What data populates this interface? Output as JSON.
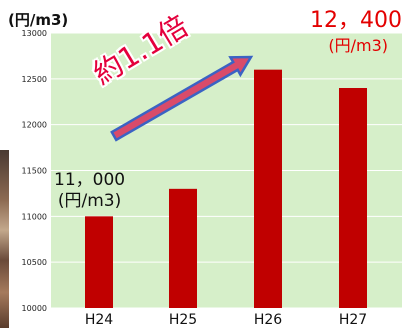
{
  "unit_label": "(円/m3)",
  "annotations": {
    "start_value": "11，000",
    "start_unit": "(円/m3)",
    "end_value": "12，400",
    "end_unit": "(円/m3)",
    "ratio": "約1.1倍"
  },
  "colors": {
    "bar": "#c00000",
    "plot_background": "#d6efc9",
    "gridline": "#ffffff",
    "arrow_body": "#d94b6a",
    "arrow_outline": "#3b63c4",
    "highlight_text": "#e30000"
  },
  "chart_data": {
    "type": "bar",
    "categories": [
      "H24",
      "H25",
      "H26",
      "H27"
    ],
    "values": [
      11000,
      11300,
      12600,
      12400
    ],
    "ylim": [
      10000,
      13000
    ],
    "yticks": [
      10000,
      10500,
      11000,
      11500,
      12000,
      12500,
      13000
    ],
    "ytick_labels": [
      "10000",
      "10500",
      "11000",
      "11500",
      "12000",
      "12500",
      "13000"
    ],
    "grid": true,
    "legend": "none"
  }
}
